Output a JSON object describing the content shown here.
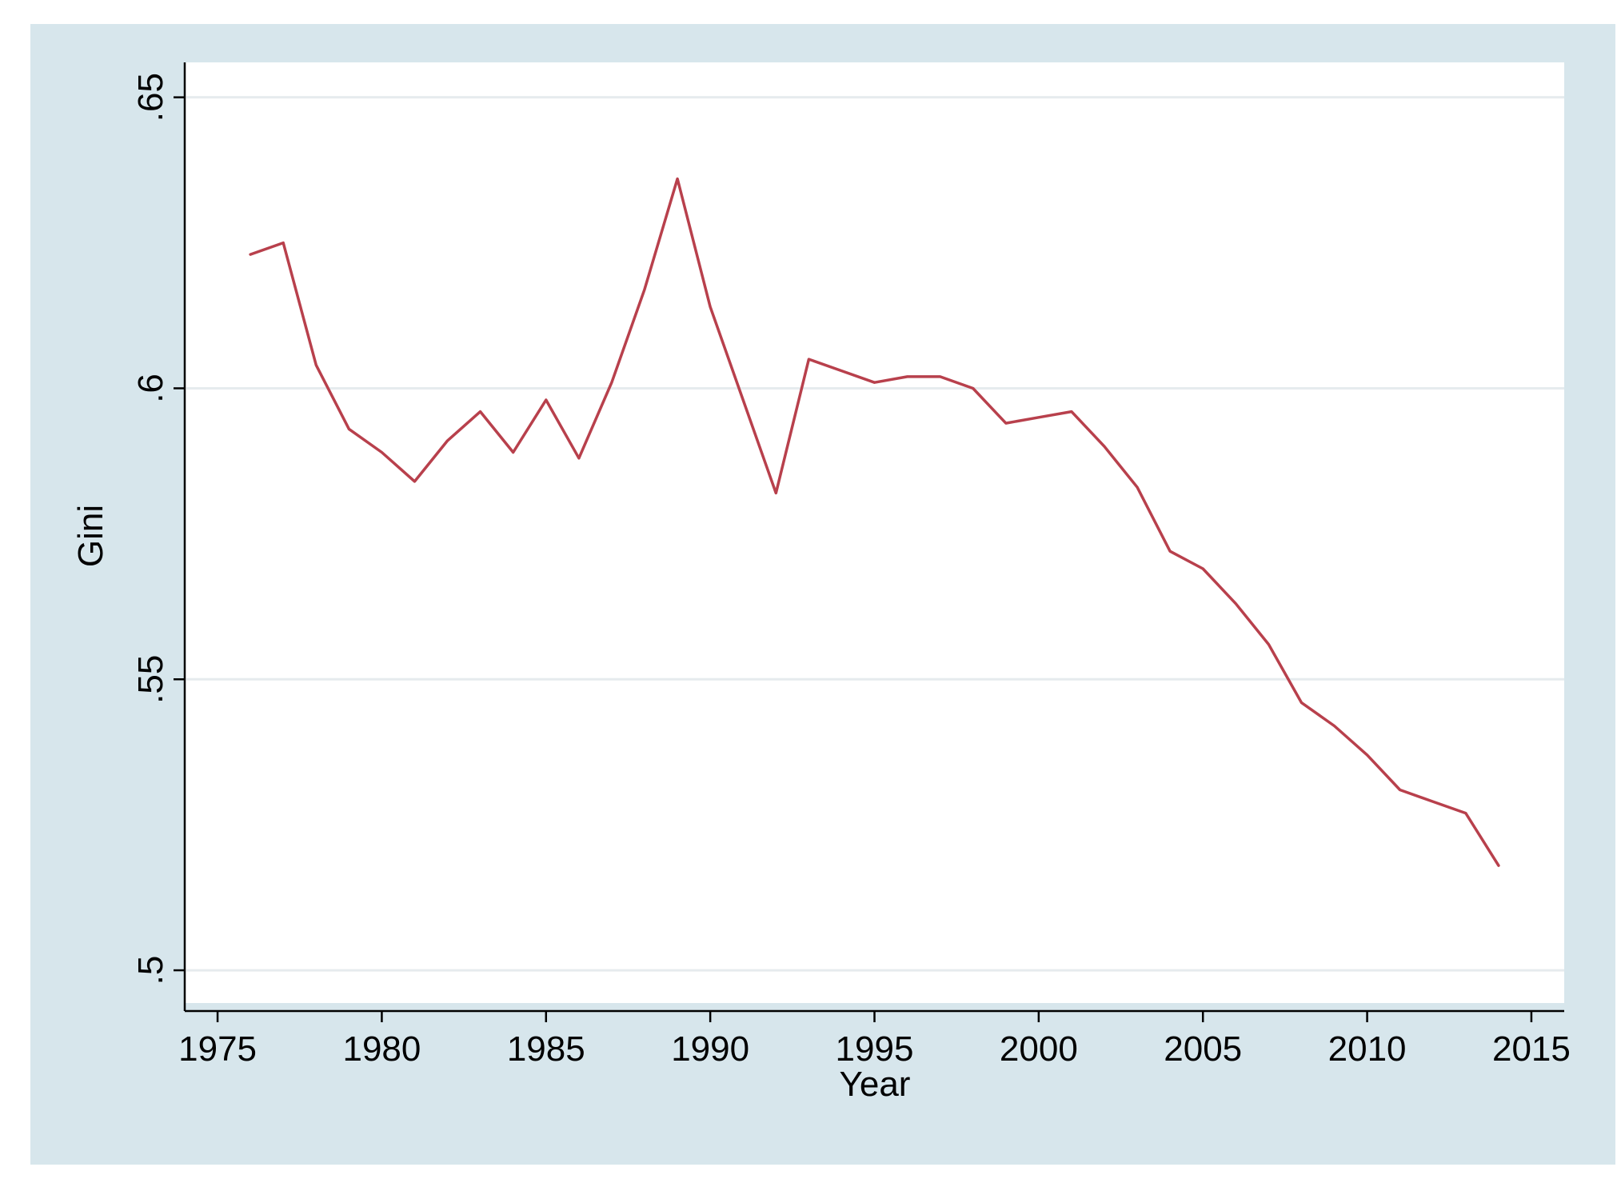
{
  "chart_data": {
    "type": "line",
    "title": "",
    "xlabel": "Year",
    "ylabel": "Gini",
    "xlim": [
      1974,
      2016
    ],
    "ylim": [
      0.493,
      0.656
    ],
    "xticks": [
      1975,
      1980,
      1985,
      1990,
      1995,
      2000,
      2005,
      2010,
      2015
    ],
    "xtick_labels": [
      "1975",
      "1980",
      "1985",
      "1990",
      "1995",
      "2000",
      "2005",
      "2010",
      "2015"
    ],
    "yticks": [
      0.5,
      0.55,
      0.6,
      0.65
    ],
    "ytick_labels": [
      ".5",
      ".55",
      ".6",
      ".65"
    ],
    "grid": "horizontal",
    "legend": "none",
    "colors": {
      "background": "#d7e6ec",
      "plot_area": "#ffffff",
      "gridline": "#e6ebee",
      "line": "#b8404c",
      "axis": "#000000"
    },
    "series": [
      {
        "x": [
          1976,
          1977,
          1978,
          1979,
          1980,
          1981,
          1982,
          1983,
          1984,
          1985,
          1986,
          1987,
          1988,
          1989,
          1990,
          1991,
          1992,
          1993,
          1994,
          1995,
          1996,
          1997,
          1998,
          1999,
          2000,
          2001,
          2002,
          2003,
          2004,
          2005,
          2006,
          2007,
          2008,
          2009,
          2010,
          2011,
          2012,
          2013,
          2014
        ],
        "values": [
          0.623,
          0.625,
          0.604,
          0.593,
          0.589,
          0.584,
          0.591,
          0.596,
          0.589,
          0.598,
          0.588,
          0.601,
          0.617,
          0.636,
          0.614,
          0.598,
          0.582,
          0.605,
          0.603,
          0.601,
          0.602,
          0.602,
          0.6,
          0.594,
          0.595,
          0.596,
          0.59,
          0.583,
          0.572,
          0.569,
          0.563,
          0.556,
          0.546,
          0.542,
          0.537,
          0.531,
          0.529,
          0.527,
          0.518
        ]
      }
    ]
  }
}
